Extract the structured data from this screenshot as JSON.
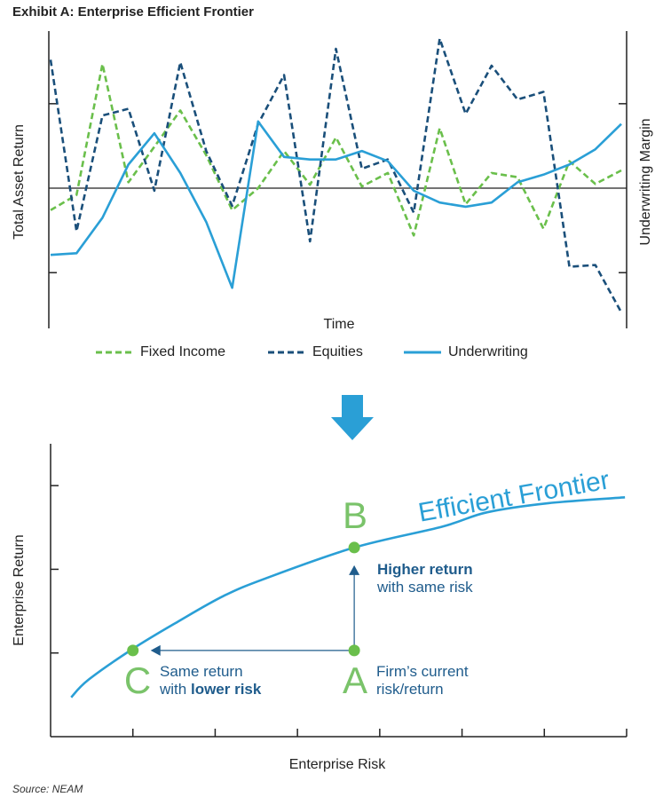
{
  "source": "Source: NEAM",
  "chart_data": [
    {
      "type": "line",
      "title": "Exhibit A: Enterprise Efficient Frontier",
      "xlabel": "Time",
      "ylabel": "Total Asset Return",
      "y2label": "Underwriting Margin",
      "categories": [
        null,
        null,
        null,
        null,
        null,
        null,
        null,
        null,
        null,
        null,
        null,
        null,
        null,
        null,
        null,
        null,
        null,
        null,
        null,
        null,
        null,
        null,
        null
      ],
      "ylim": [
        -1.66,
        1.86
      ],
      "yticks": [
        -1,
        0,
        1
      ],
      "series": [
        {
          "name": "Fixed Income",
          "color": "#6abf4b",
          "dashed": true,
          "values": [
            -0.26,
            -0.08,
            1.47,
            0.07,
            0.49,
            0.92,
            0.39,
            -0.26,
            0,
            0.44,
            0.04,
            0.6,
            0.02,
            0.18,
            -0.56,
            0.71,
            -0.19,
            0.18,
            0.13,
            -0.48,
            0.32,
            0.05,
            0.21
          ]
        },
        {
          "name": "Equities",
          "color": "#1a4f7a",
          "dashed": true,
          "values": [
            1.52,
            -0.51,
            0.86,
            0.94,
            -0.03,
            1.49,
            0.44,
            -0.21,
            0.76,
            1.34,
            -0.63,
            1.65,
            0.23,
            0.34,
            -0.29,
            1.77,
            0.88,
            1.45,
            1.05,
            1.14,
            -0.93,
            -0.91,
            -1.47
          ]
        },
        {
          "name": "Underwriting",
          "color": "#2a9fd6",
          "dashed": false,
          "values": [
            -0.79,
            -0.77,
            -0.35,
            0.28,
            0.65,
            0.18,
            -0.4,
            -1.18,
            0.79,
            0.37,
            0.34,
            0.34,
            0.44,
            0.32,
            -0.03,
            -0.17,
            -0.22,
            -0.17,
            0.07,
            0.16,
            0.28,
            0.46,
            0.76
          ]
        }
      ]
    },
    {
      "type": "frontier",
      "xlabel": "Enterprise Risk",
      "ylabel": "Enterprise Return",
      "xlim": [
        0,
        7
      ],
      "xticks": [
        1,
        2,
        3,
        4,
        5,
        6
      ],
      "ylim": [
        0,
        3.5
      ],
      "yticks": [
        1,
        2,
        3
      ],
      "series": [
        {
          "name": "Efficient Frontier",
          "color": "#2a9fd6",
          "x": [
            0.25,
            0.46,
            1,
            1.54,
            2.1,
            2.61,
            3.69,
            4.76,
            5.3,
            6.05,
            6.98
          ],
          "values": [
            0.47,
            0.68,
            1.05,
            1.37,
            1.68,
            1.89,
            2.26,
            2.51,
            2.68,
            2.79,
            2.86
          ]
        }
      ],
      "point_color": "#6abf4b",
      "points": [
        {
          "label": "A",
          "x": 3.69,
          "y": 1.03
        },
        {
          "label": "B",
          "x": 3.69,
          "y": 2.26
        },
        {
          "label": "C",
          "x": 1,
          "y": 1.03
        }
      ],
      "annotations": [
        {
          "lines": [
            [
              {
                "text": "Firm’s current"
              }
            ],
            [
              {
                "text": "risk/return"
              }
            ]
          ]
        },
        {
          "lines": [
            [
              {
                "text": "Higher return",
                "bold": true
              }
            ],
            [
              {
                "text": "with same risk"
              }
            ]
          ]
        },
        {
          "lines": [
            [
              {
                "text": "Same return"
              }
            ],
            [
              {
                "text": "with "
              },
              {
                "text": "lower risk",
                "bold": true
              }
            ]
          ]
        }
      ]
    }
  ]
}
